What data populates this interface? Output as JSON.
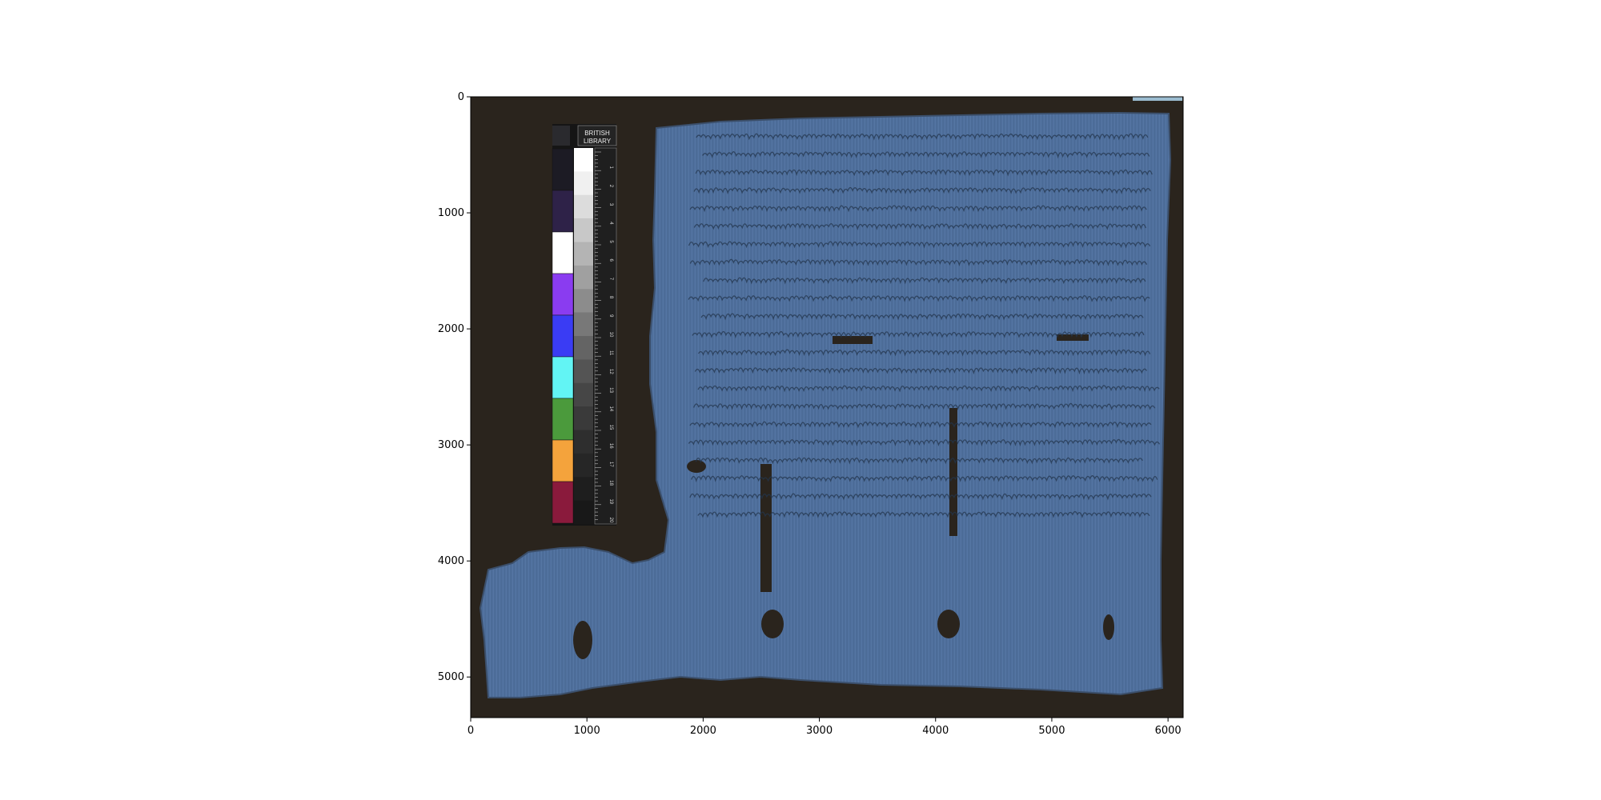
{
  "figure": {
    "type": "image",
    "subject": "scanned papyrus fragment with color calibration target and ruler",
    "xlim": [
      0,
      6130
    ],
    "ylim": [
      5350,
      0
    ],
    "x_ticks": [
      0,
      1000,
      2000,
      3000,
      4000,
      5000,
      6000
    ],
    "y_ticks": [
      0,
      1000,
      2000,
      3000,
      4000,
      5000
    ],
    "colors": {
      "background": "#2a241d",
      "papyrus": "#4f6f9c",
      "ink": "#1e2f45"
    }
  },
  "calibration": {
    "logo_text": [
      "BRITISH",
      "LIBRARY"
    ],
    "swatch_colors": [
      "#1c1b24",
      "#2e2248",
      "#ffffff",
      "#8a3cf0",
      "#3a3cf4",
      "#62f4f4",
      "#4b9a3c",
      "#f4a33c",
      "#8a1a3c"
    ],
    "gray_steps": [
      "#ffffff",
      "#f0f0f0",
      "#dcdcdc",
      "#c8c8c8",
      "#b4b4b4",
      "#a0a0a0",
      "#8c8c8c",
      "#787878",
      "#646464",
      "#545454",
      "#464646",
      "#3a3a3a",
      "#2e2e2e",
      "#262626",
      "#1e1e1e",
      "#181818"
    ],
    "ruler_numbers": [
      "1",
      "2",
      "3",
      "4",
      "5",
      "6",
      "7",
      "8",
      "9",
      "10",
      "11",
      "12",
      "13",
      "14",
      "15",
      "16",
      "17",
      "18",
      "19",
      "20"
    ]
  }
}
